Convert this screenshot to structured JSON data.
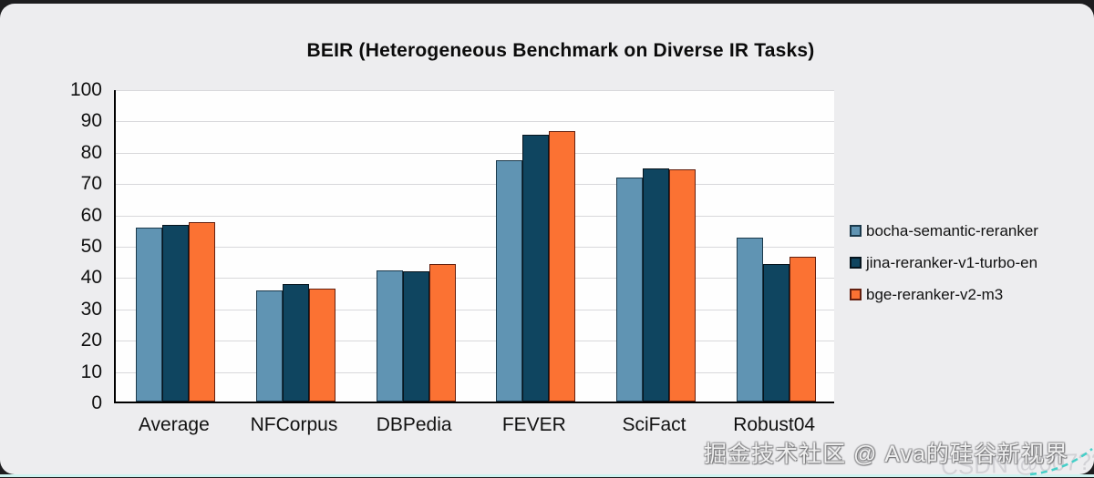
{
  "page": {
    "background_color": "#1d1d1f",
    "card_color": "#EDEDEF",
    "plot_background_color": "#FEFEFE",
    "gridline_color": "#D8D8DB",
    "bottom_accent_color": "#CDF2EF",
    "corner_dash_color": "#46CFC8"
  },
  "chart_data": {
    "type": "bar",
    "title": "BEIR (Heterogeneous Benchmark on Diverse IR Tasks)",
    "categories": [
      "Average",
      "NFCorpus",
      "DBPedia",
      "FEVER",
      "SciFact",
      "Robust04"
    ],
    "series": [
      {
        "name": "bocha-semantic-reranker",
        "color": "#6094B3",
        "border_color": "#1B394B",
        "values": [
          55.5,
          35.5,
          41.9,
          77.0,
          71.4,
          52.3
        ]
      },
      {
        "name": "jina-reranker-v1-turbo-en",
        "color": "#0F4560",
        "border_color": "#06141D",
        "values": [
          56.5,
          37.4,
          41.5,
          85.2,
          74.5,
          44.0
        ]
      },
      {
        "name": "bge-reranker-v2-m3",
        "color": "#FB7233",
        "border_color": "#64200F",
        "values": [
          57.4,
          36.0,
          44.0,
          86.4,
          74.0,
          46.3
        ]
      }
    ],
    "xlabel": "",
    "ylabel": "",
    "ylim": [
      0,
      100
    ],
    "yticks": [
      0,
      10,
      20,
      30,
      40,
      50,
      60,
      70,
      80,
      90,
      100
    ],
    "grid": true,
    "legend_position": "right"
  },
  "watermarks": {
    "primary": "掘金技术社区 @ Ava的硅谷新视界",
    "secondary": "CSDN @007??1"
  }
}
